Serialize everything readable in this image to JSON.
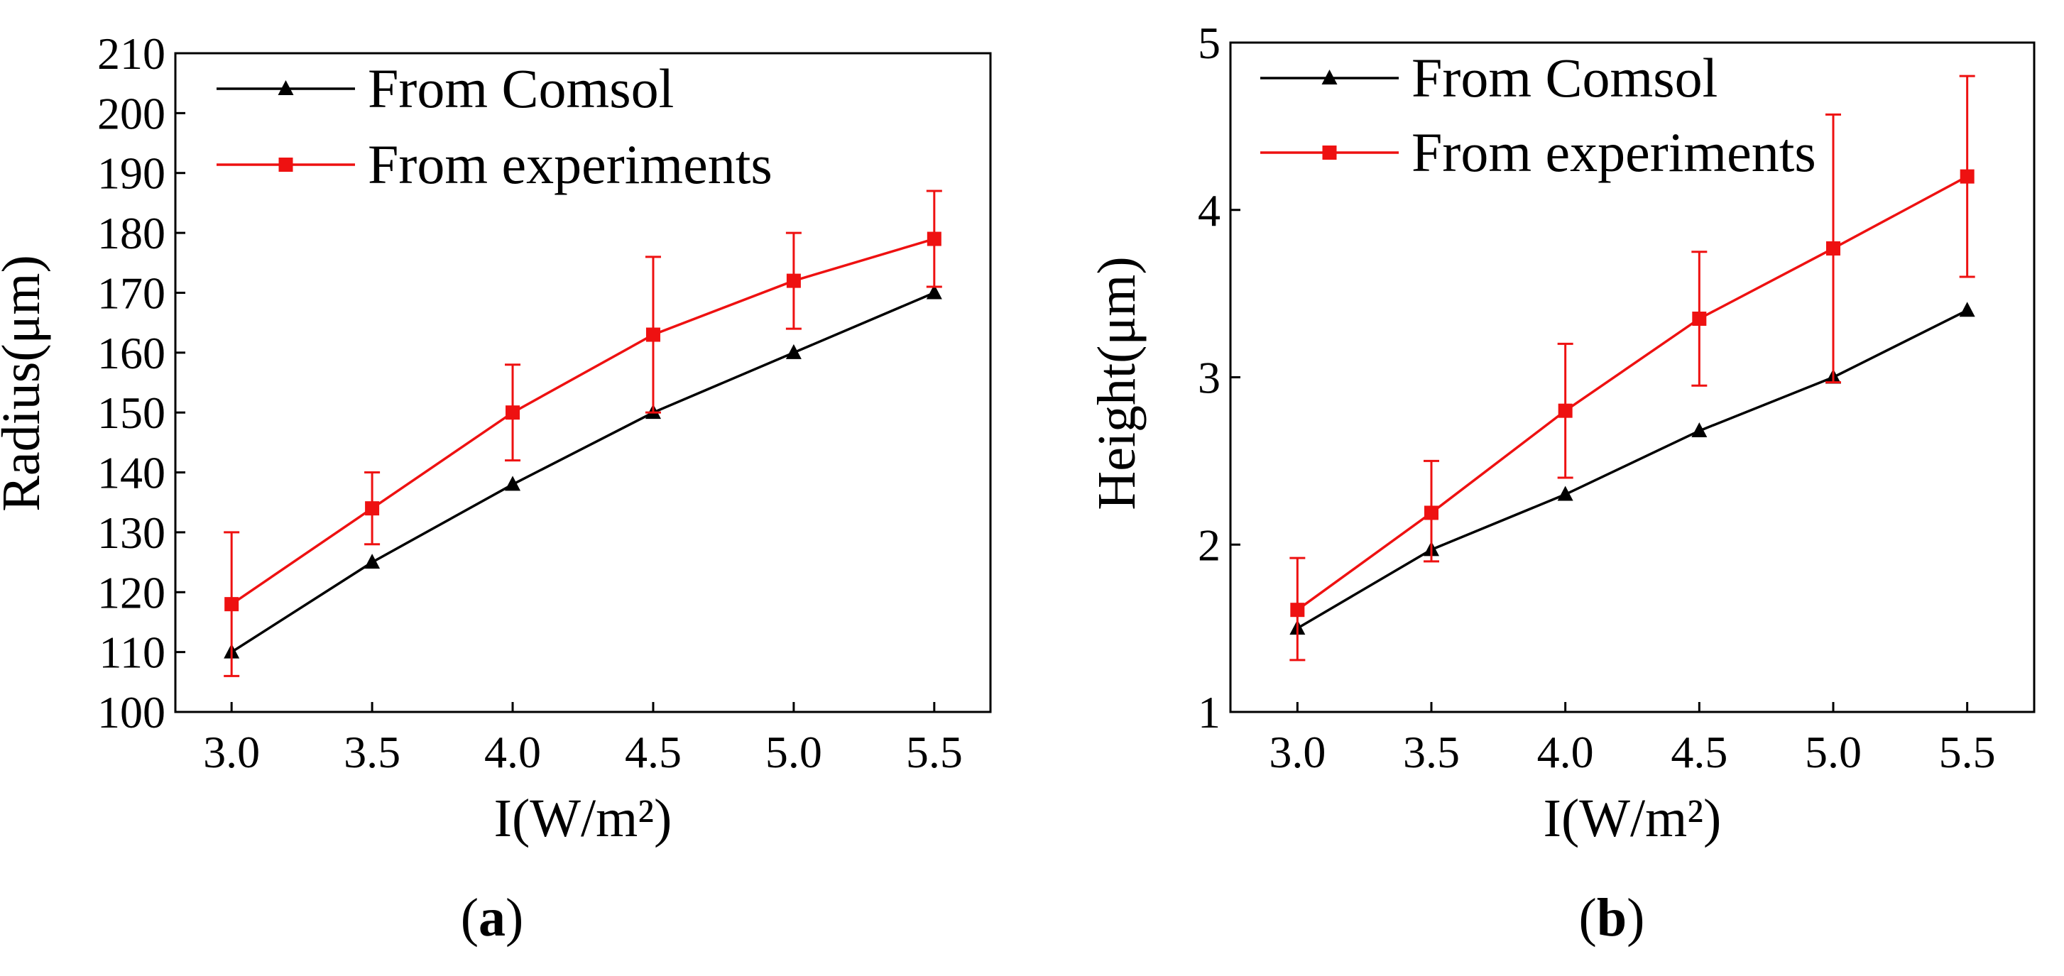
{
  "chart_data": [
    {
      "type": "line",
      "panel": "(a)",
      "panel_letter": "a",
      "xlabel": "I(W/m²)",
      "ylabel": "Radius(μm)",
      "xlim": [
        2.8,
        5.7
      ],
      "ylim": [
        100,
        210
      ],
      "xticks": [
        3.0,
        3.5,
        4.0,
        4.5,
        5.0,
        5.5
      ],
      "yticks": [
        100,
        110,
        120,
        130,
        140,
        150,
        160,
        170,
        180,
        190,
        200,
        210
      ],
      "xtick_labels": [
        "3.0",
        "3.5",
        "4.0",
        "4.5",
        "5.0",
        "5.5"
      ],
      "ytick_labels": [
        "100",
        "110",
        "120",
        "130",
        "140",
        "150",
        "160",
        "170",
        "180",
        "190",
        "200",
        "210"
      ],
      "legend_position": "top-left",
      "series": [
        {
          "name": "From Comsol",
          "color": "#000000",
          "marker": "triangle",
          "x": [
            3.0,
            3.5,
            4.0,
            4.5,
            5.0,
            5.5
          ],
          "values": [
            110,
            125,
            138,
            150,
            160,
            170
          ]
        },
        {
          "name": "From experiments",
          "color": "#ee1111",
          "marker": "square",
          "x": [
            3.0,
            3.5,
            4.0,
            4.5,
            5.0,
            5.5
          ],
          "values": [
            118,
            134,
            150,
            163,
            172,
            179
          ],
          "error_low": [
            106,
            128,
            142,
            150,
            164,
            171
          ],
          "error_high": [
            130,
            140,
            158,
            176,
            180,
            187
          ]
        }
      ]
    },
    {
      "type": "line",
      "panel": "(b)",
      "panel_letter": "b",
      "xlabel": "I(W/m²)",
      "ylabel": "Height(μm)",
      "xlim": [
        2.75,
        5.75
      ],
      "ylim": [
        1,
        5
      ],
      "xticks": [
        3.0,
        3.5,
        4.0,
        4.5,
        5.0,
        5.5
      ],
      "yticks": [
        1,
        2,
        3,
        4,
        5
      ],
      "xtick_labels": [
        "3.0",
        "3.5",
        "4.0",
        "4.5",
        "5.0",
        "5.5"
      ],
      "ytick_labels": [
        "1",
        "2",
        "3",
        "4",
        "5"
      ],
      "legend_position": "top-left",
      "series": [
        {
          "name": "From Comsol",
          "color": "#000000",
          "marker": "triangle",
          "x": [
            3.0,
            3.5,
            4.0,
            4.5,
            5.0,
            5.5
          ],
          "values": [
            1.5,
            1.97,
            2.3,
            2.68,
            3.0,
            3.4
          ]
        },
        {
          "name": "From experiments",
          "color": "#ee1111",
          "marker": "square",
          "x": [
            3.0,
            3.5,
            4.0,
            4.5,
            5.0,
            5.5
          ],
          "values": [
            1.61,
            2.19,
            2.8,
            3.35,
            3.77,
            4.2
          ],
          "error_low": [
            1.31,
            1.9,
            2.4,
            2.95,
            2.97,
            3.6
          ],
          "error_high": [
            1.92,
            2.5,
            3.2,
            3.75,
            4.57,
            4.8
          ]
        }
      ]
    }
  ]
}
